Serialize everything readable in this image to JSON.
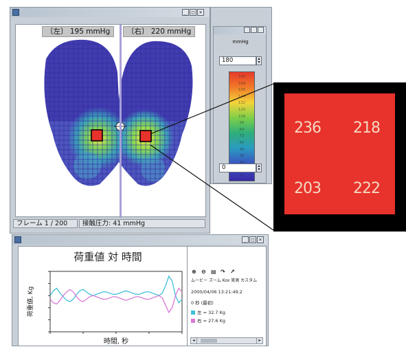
{
  "map_window": {
    "left_label": "〔左〕 195 mmHg",
    "right_label": "〔右〕 220 mmHg",
    "status_frame": "フレーム 1 / 200",
    "status_pressure": "接触圧力: 41 mmHg"
  },
  "scale_window": {
    "unit": "mmHg",
    "max_value": "180",
    "min_value": "0",
    "tick_labels": [
      "180",
      "168",
      "156",
      "144",
      "132",
      "120",
      "108",
      "96",
      "84",
      "72",
      "60",
      "48",
      "36",
      "24",
      "12",
      "0"
    ]
  },
  "zoom_values": [
    "236",
    "218",
    "203",
    "222"
  ],
  "graph_window": {
    "chart_title": "荷重値 対 時間",
    "y_label": "荷重値, Kg",
    "x_label": "時間, 秒",
    "tool_label": "ムービー ズーム Kox 実測 カスタム",
    "timestamp": "2000/04/06 13:21:49.2",
    "frame": "0 秒 (最初)",
    "legend": [
      {
        "label": "左 = 32.7 Kg",
        "color": "#3fc0d8"
      },
      {
        "label": "右 = 27.6 Kg",
        "color": "#d97ad6"
      }
    ]
  },
  "chart_data": {
    "type": "line",
    "title": "荷重値 対 時間",
    "xlabel": "時間, 秒",
    "ylabel": "荷重値, Kg",
    "x": [
      0,
      1,
      2,
      3,
      4,
      5,
      6,
      7,
      8,
      9,
      10,
      11,
      12,
      13,
      14,
      15,
      16,
      17,
      18,
      19,
      20,
      21,
      22,
      23,
      24,
      25,
      26,
      27,
      28,
      29,
      30,
      31,
      32,
      33,
      34,
      35,
      36,
      37,
      38,
      39,
      40
    ],
    "series": [
      {
        "name": "左",
        "color": "#3fc0d8",
        "values": [
          30,
          34,
          36,
          32,
          29,
          26,
          25,
          27,
          31,
          34,
          35,
          33,
          31,
          30,
          31,
          32,
          33,
          33,
          32,
          31,
          31,
          32,
          33,
          34,
          33,
          32,
          31,
          31,
          32,
          33,
          33,
          32,
          31,
          30,
          32,
          38,
          46,
          42,
          30,
          24,
          27
        ]
      },
      {
        "name": "右",
        "color": "#d97ad6",
        "values": [
          27,
          24,
          23,
          26,
          30,
          33,
          35,
          33,
          29,
          26,
          25,
          27,
          29,
          30,
          29,
          28,
          27,
          27,
          28,
          29,
          29,
          28,
          27,
          26,
          27,
          28,
          29,
          29,
          28,
          27,
          27,
          28,
          29,
          30,
          28,
          22,
          16,
          20,
          30,
          36,
          33
        ]
      }
    ],
    "xlim": [
      0,
      40
    ],
    "ylim": [
      0,
      50
    ]
  }
}
